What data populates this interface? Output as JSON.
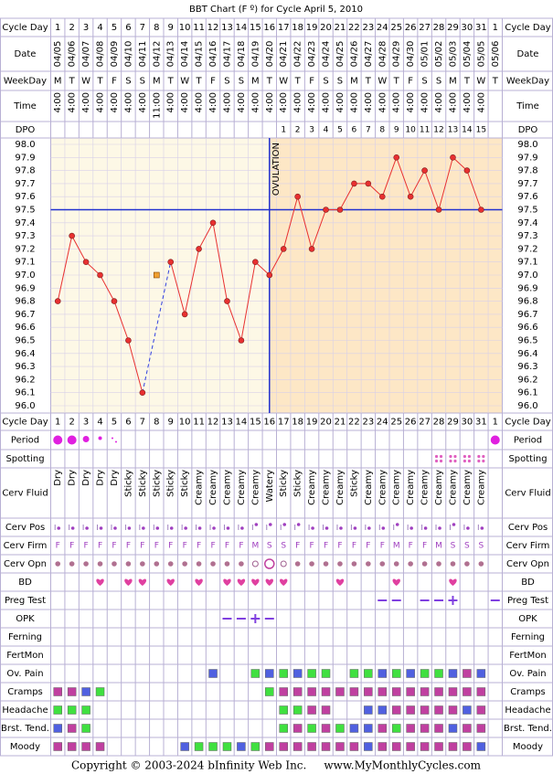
{
  "title": "BBT Chart (F º) for Cycle April 5, 2010",
  "labels": {
    "cycle_day": "Cycle Day",
    "date": "Date",
    "weekday": "WeekDay",
    "time": "Time",
    "dpo": "DPO",
    "period": "Period",
    "spotting": "Spotting",
    "cerv_fluid": "Cerv Fluid",
    "cerv_pos": "Cerv Pos",
    "cerv_firm": "Cerv Firm",
    "cerv_opn": "Cerv Opn",
    "bd": "BD",
    "preg_test": "Preg Test",
    "opk": "OPK",
    "ferning": "Ferning",
    "fertmon": "FertMon",
    "ov_pain": "Ov. Pain",
    "cramps": "Cramps",
    "headache": "Headache",
    "brst_tend": "Brst. Tend.",
    "moody": "Moody"
  },
  "cycle_days": [
    1,
    2,
    3,
    4,
    5,
    6,
    7,
    8,
    9,
    10,
    11,
    12,
    13,
    14,
    15,
    16,
    17,
    18,
    19,
    20,
    21,
    22,
    23,
    24,
    25,
    26,
    27,
    28,
    29,
    30,
    31,
    1
  ],
  "dates": [
    "04/05",
    "04/06",
    "04/07",
    "04/08",
    "04/09",
    "04/10",
    "04/11",
    "04/12",
    "04/13",
    "04/14",
    "04/15",
    "04/16",
    "04/17",
    "04/18",
    "04/19",
    "04/20",
    "04/21",
    "04/22",
    "04/23",
    "04/24",
    "04/25",
    "04/26",
    "04/27",
    "04/28",
    "04/29",
    "04/30",
    "05/01",
    "05/02",
    "05/03",
    "05/04",
    "05/05",
    "05/06"
  ],
  "weekdays": [
    "M",
    "T",
    "W",
    "T",
    "F",
    "S",
    "S",
    "M",
    "T",
    "W",
    "T",
    "F",
    "S",
    "S",
    "M",
    "T",
    "W",
    "T",
    "F",
    "S",
    "S",
    "M",
    "T",
    "W",
    "T",
    "F",
    "S",
    "S",
    "M",
    "T",
    "W",
    "T"
  ],
  "times": [
    "4:00",
    "4:00",
    "4:00",
    "4:00",
    "4:00",
    "4:00",
    "4:00",
    "11:00",
    "4:00",
    "4:00",
    "4:00",
    "4:00",
    "4:00",
    "4:00",
    "4:00",
    "4:00",
    "4:00",
    "4:00",
    "4:00",
    "4:00",
    "4:00",
    "4:00",
    "4:00",
    "4:00",
    "4:00",
    "4:00",
    "4:00",
    "4:00",
    "4:00",
    "4:00",
    "4:00",
    null
  ],
  "dpo": [
    null,
    null,
    null,
    null,
    null,
    null,
    null,
    null,
    null,
    null,
    null,
    null,
    null,
    null,
    null,
    null,
    1,
    2,
    3,
    4,
    5,
    6,
    7,
    8,
    9,
    10,
    11,
    12,
    13,
    14,
    15,
    null
  ],
  "cerv_fluid": [
    "Dry",
    "Dry",
    "Dry",
    "Dry",
    "Dry",
    "Sticky",
    "Sticky",
    "Sticky",
    "Sticky",
    "Sticky",
    "Creamy",
    "Creamy",
    "Creamy",
    "Creamy",
    "Creamy",
    "Watery",
    "Sticky",
    "Sticky",
    "Creamy",
    "Creamy",
    "Creamy",
    "Sticky",
    "Creamy",
    "Creamy",
    "Creamy",
    "Creamy",
    "Creamy",
    "Creamy",
    "Creamy",
    "Creamy",
    "Creamy",
    null
  ],
  "cerv_firm": [
    "F",
    "F",
    "F",
    "F",
    "F",
    "F",
    "F",
    "F",
    "F",
    "F",
    "F",
    "F",
    "F",
    "F",
    "M",
    "S",
    "S",
    "F",
    "F",
    "F",
    "F",
    "F",
    "F",
    "F",
    "M",
    "F",
    "F",
    "M",
    "S",
    "S",
    "S",
    null
  ],
  "chart_data": {
    "type": "line",
    "values": [
      96.8,
      97.3,
      97.1,
      97.0,
      96.8,
      96.5,
      96.1,
      null,
      97.1,
      96.7,
      97.2,
      97.4,
      96.8,
      96.5,
      97.1,
      97.0,
      97.2,
      97.6,
      97.2,
      97.5,
      97.5,
      97.7,
      97.7,
      97.6,
      97.9,
      97.6,
      97.8,
      97.5,
      97.9,
      97.8,
      97.5,
      null
    ],
    "color": "#e83030",
    "discarded": {
      "day": 8,
      "value": 97.0
    },
    "coverline": 97.5,
    "ovulation_day": 16,
    "ovulation_label": "OVULATION",
    "ylim": [
      96.0,
      98.0
    ],
    "yticks": [
      {
        "value": 98.0,
        "label": "98.0"
      },
      97.9,
      97.8,
      97.7,
      97.6,
      97.5,
      97.4,
      97.3,
      97.2,
      97.1,
      {
        "value": 97.0,
        "label": "97.0"
      },
      96.9,
      96.8,
      96.7,
      96.6,
      96.5,
      96.4,
      96.3,
      96.2,
      96.1,
      {
        "value": 96.0,
        "label": "96.0"
      }
    ]
  },
  "footer": "Copyright © 2003-2024 bInfinity Web Inc.     www.MyMonthlyCycles.com"
}
